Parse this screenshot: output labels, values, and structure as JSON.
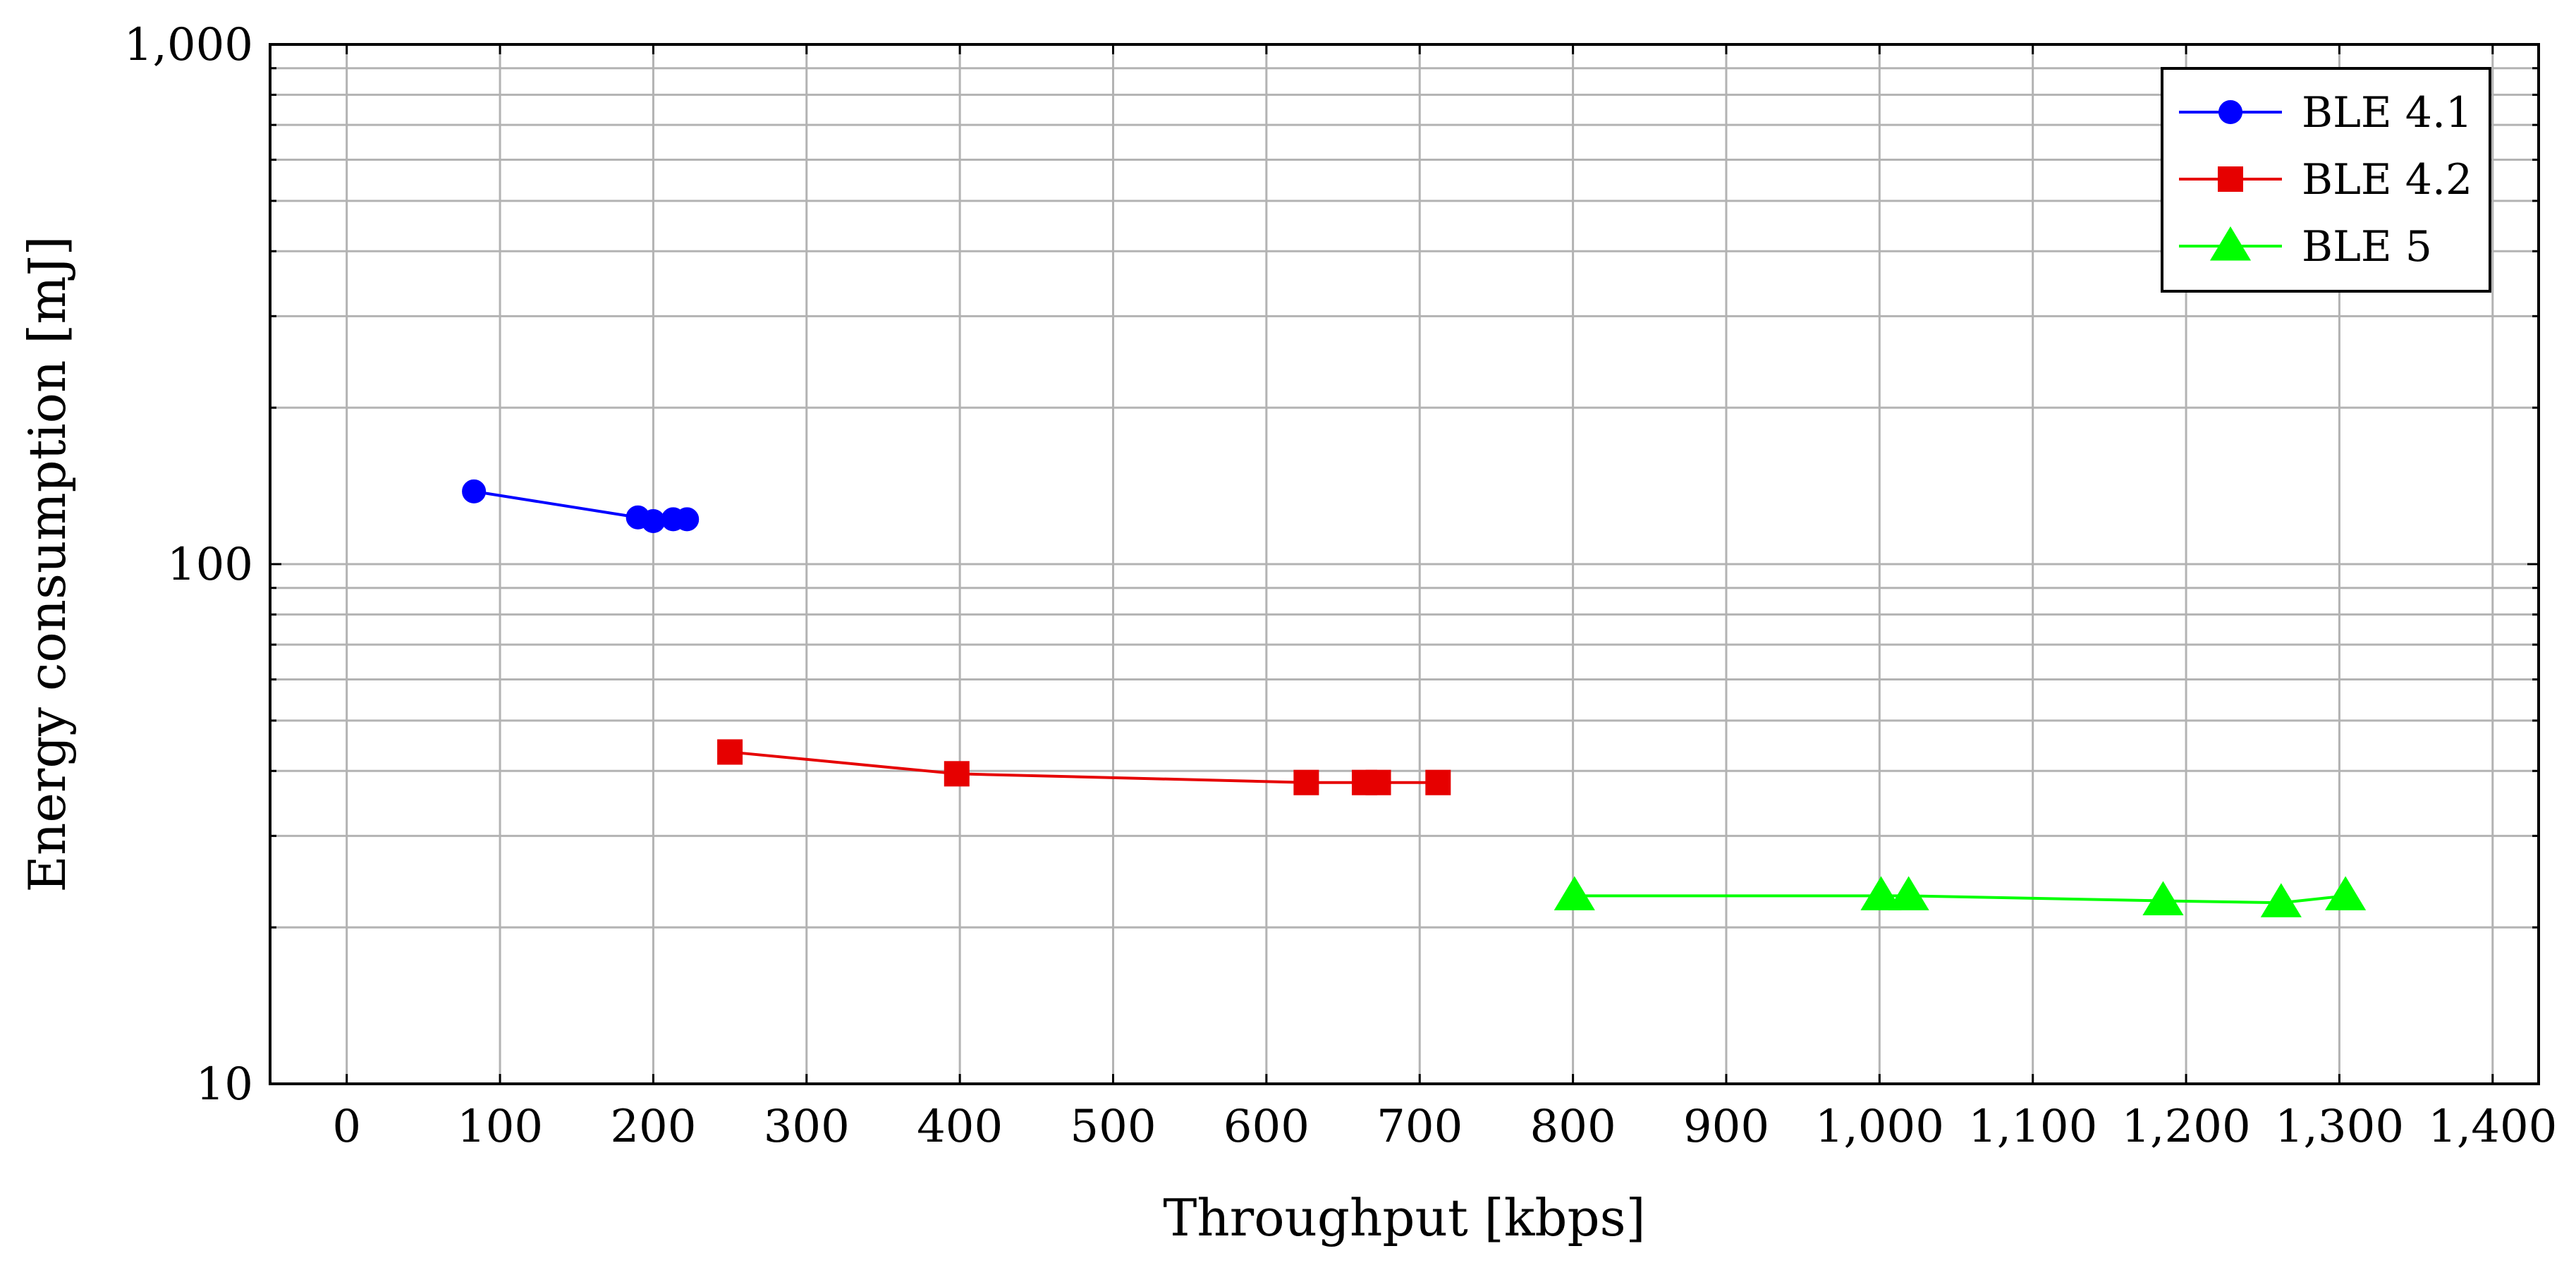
{
  "chart_data": {
    "type": "line",
    "title": "",
    "xlabel": "Throughput [kbps]",
    "ylabel": "Energy consumption [mJ]",
    "xlim": [
      -50,
      1430
    ],
    "ylim": [
      10,
      1000
    ],
    "yscale": "log",
    "grid": true,
    "legend_position": "top-right",
    "x_ticks": [
      0,
      100,
      200,
      300,
      400,
      500,
      600,
      700,
      800,
      900,
      1000,
      1100,
      1200,
      1300,
      1400
    ],
    "x_tick_labels": [
      "0",
      "100",
      "200",
      "300",
      "400",
      "500",
      "600",
      "700",
      "800",
      "900",
      "1,000",
      "1,100",
      "1,200",
      "1,300",
      "1,400"
    ],
    "y_ticks": [
      10,
      100,
      1000
    ],
    "y_tick_labels": [
      "10",
      "100",
      "1,000"
    ],
    "series": [
      {
        "name": "BLE 4.1",
        "color": "#0000ff",
        "marker": "circle",
        "x": [
          83,
          190,
          200,
          213,
          222
        ],
        "y": [
          138,
          123,
          121,
          122,
          122
        ]
      },
      {
        "name": "BLE 4.2",
        "color": "#e60000",
        "marker": "square",
        "x": [
          250,
          398,
          626,
          664,
          673,
          712
        ],
        "y": [
          43.5,
          39.5,
          38,
          38,
          38,
          38
        ]
      },
      {
        "name": "BLE 5",
        "color": "#00ff00",
        "marker": "triangle",
        "x": [
          801,
          1001,
          1019,
          1185,
          1262,
          1304
        ],
        "y": [
          23,
          23,
          23,
          22.5,
          22.3,
          23
        ]
      }
    ]
  }
}
